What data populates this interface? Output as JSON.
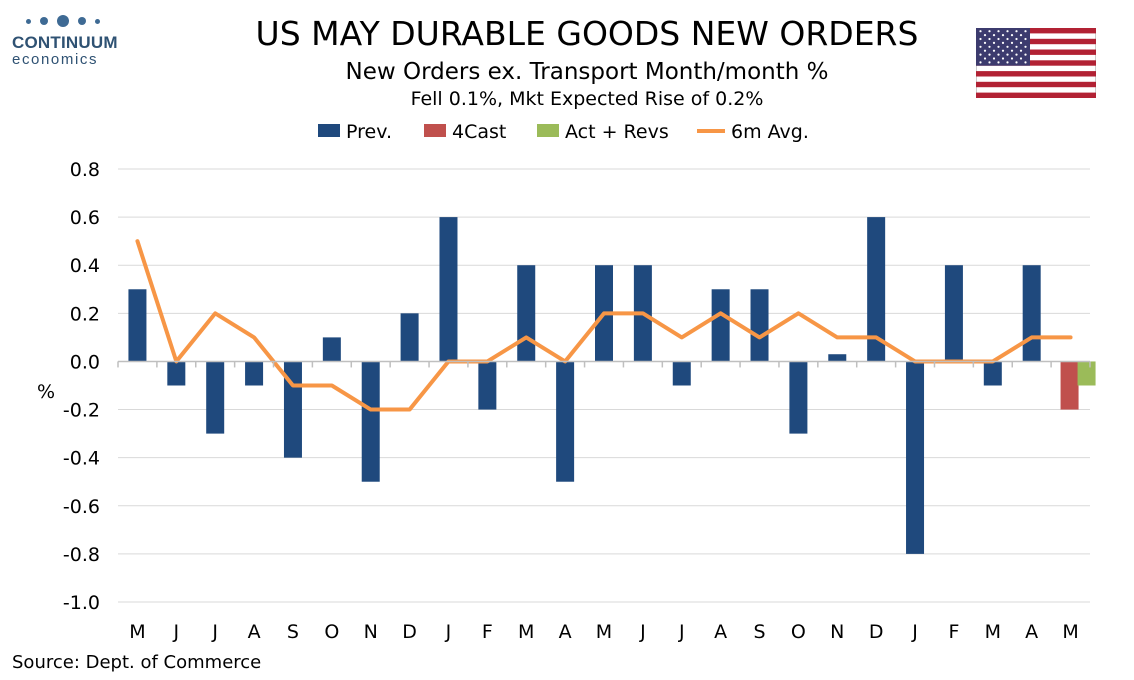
{
  "header": {
    "logo_word": "CONTINUUM",
    "logo_sub": "economics",
    "title": "US MAY DURABLE GOODS NEW ORDERS",
    "subtitle": "New Orders ex. Transport Month/month %",
    "subtitle2": "Fell 0.1%, Mkt Expected Rise of 0.2%"
  },
  "source": "Source: Dept. of Commerce",
  "colors": {
    "prev": "#1f497d",
    "forecast": "#c0504d",
    "actual": "#9bbb59",
    "avg": "#f79646",
    "grid": "#d9d9d9"
  },
  "chart_data": {
    "type": "bar",
    "ylabel": "%",
    "ylim": [
      -1.0,
      0.8
    ],
    "yticks": [
      "0.8",
      "0.6",
      "0.4",
      "0.2",
      "0.0",
      "-0.2",
      "-0.4",
      "-0.6",
      "-0.8",
      "-1.0"
    ],
    "ytick_values": [
      0.8,
      0.6,
      0.4,
      0.2,
      0.0,
      -0.2,
      -0.4,
      -0.6,
      -0.8,
      -1.0
    ],
    "categories": [
      "M",
      "J",
      "J",
      "A",
      "S",
      "O",
      "N",
      "D",
      "J",
      "F",
      "M",
      "A",
      "M",
      "J",
      "J",
      "A",
      "S",
      "O",
      "N",
      "D",
      "J",
      "F",
      "M",
      "A",
      "M"
    ],
    "grid": true,
    "legend_position": "top",
    "legend": [
      "Prev.",
      "4Cast",
      "Act + Revs",
      "6m Avg."
    ],
    "series": [
      {
        "name": "Prev.",
        "kind": "bar",
        "values": [
          0.3,
          -0.1,
          -0.3,
          -0.1,
          -0.4,
          0.1,
          -0.5,
          0.2,
          0.6,
          -0.2,
          0.4,
          -0.5,
          0.4,
          0.4,
          -0.1,
          0.3,
          0.3,
          -0.3,
          0.03,
          0.6,
          -0.8,
          0.4,
          -0.1,
          0.4,
          null
        ]
      },
      {
        "name": "4Cast",
        "kind": "bar",
        "values": [
          null,
          null,
          null,
          null,
          null,
          null,
          null,
          null,
          null,
          null,
          null,
          null,
          null,
          null,
          null,
          null,
          null,
          null,
          null,
          null,
          null,
          null,
          null,
          null,
          -0.2
        ]
      },
      {
        "name": "Act + Revs",
        "kind": "bar",
        "values": [
          null,
          null,
          null,
          null,
          null,
          null,
          null,
          null,
          null,
          null,
          null,
          null,
          null,
          null,
          null,
          null,
          null,
          null,
          null,
          null,
          null,
          null,
          null,
          null,
          -0.1
        ]
      },
      {
        "name": "6m Avg.",
        "kind": "line",
        "values": [
          0.5,
          0.0,
          0.2,
          0.1,
          -0.1,
          -0.1,
          -0.2,
          -0.2,
          0.0,
          0.0,
          0.1,
          0.0,
          0.2,
          0.2,
          0.1,
          0.2,
          0.1,
          0.2,
          0.1,
          0.1,
          0.0,
          0.0,
          0.0,
          0.1,
          0.1
        ]
      }
    ]
  }
}
